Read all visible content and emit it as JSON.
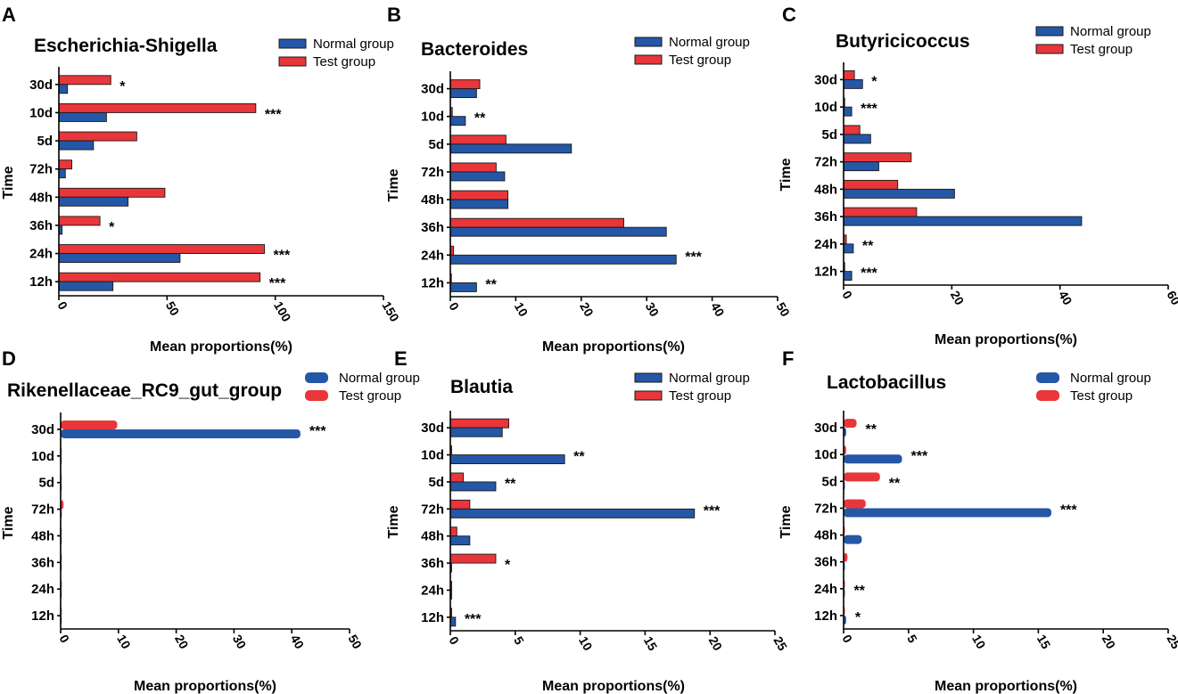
{
  "figure": {
    "colors": {
      "normal": "#2457a6",
      "test": "#e8363a",
      "stroke": "#1a1a1a"
    }
  },
  "chart_data": [
    {
      "panel": "A",
      "type": "bar",
      "orientation": "horizontal",
      "title": "Escherichia-Shigella",
      "xlabel": "Mean proportions(%)",
      "ylabel": "Time",
      "categories": [
        "30d",
        "10d",
        "5d",
        "72h",
        "48h",
        "36h",
        "24h",
        "12h"
      ],
      "series": [
        {
          "name": "Normal group",
          "values": [
            4,
            22,
            16,
            3,
            32,
            1.5,
            56,
            25
          ]
        },
        {
          "name": "Test group",
          "values": [
            24,
            91,
            36,
            6,
            49,
            19,
            95,
            93
          ]
        }
      ],
      "significance": [
        "*",
        "***",
        "",
        "",
        "",
        "*",
        "***",
        "***"
      ],
      "xlim": [
        0,
        150
      ],
      "xticks": [
        0,
        50,
        100,
        150
      ],
      "legend": [
        "Normal group",
        "Test group"
      ],
      "legend_position": "top-right"
    },
    {
      "panel": "B",
      "type": "bar",
      "orientation": "horizontal",
      "title": "Bacteroides",
      "xlabel": "Mean proportions(%)",
      "ylabel": "Time",
      "categories": [
        "30d",
        "10d",
        "5d",
        "72h",
        "48h",
        "36h",
        "24h",
        "12h"
      ],
      "series": [
        {
          "name": "Normal group",
          "values": [
            4,
            2.3,
            18.5,
            8.3,
            8.8,
            33,
            34.5,
            4
          ]
        },
        {
          "name": "Test group",
          "values": [
            4.5,
            0.3,
            8.5,
            7,
            8.8,
            26.5,
            0.5,
            0.1
          ]
        }
      ],
      "significance": [
        "",
        "**",
        "",
        "",
        "",
        "",
        "***",
        "**"
      ],
      "xlim": [
        0,
        50
      ],
      "xticks": [
        0,
        10,
        20,
        30,
        40,
        50
      ],
      "legend": [
        "Normal group",
        "Test group"
      ],
      "legend_position": "top-right"
    },
    {
      "panel": "C",
      "type": "bar",
      "orientation": "horizontal",
      "title": "Butyricicoccus",
      "xlabel": "Mean proportions(%)",
      "ylabel": "Time",
      "categories": [
        "30d",
        "10d",
        "5d",
        "72h",
        "48h",
        "36h",
        "24h",
        "12h"
      ],
      "series": [
        {
          "name": "Normal group",
          "values": [
            3.5,
            1.5,
            5,
            6.5,
            20.5,
            44,
            1.8,
            1.5
          ]
        },
        {
          "name": "Test group",
          "values": [
            2,
            0.2,
            3,
            12.5,
            10,
            13.5,
            0.5,
            0.2
          ]
        }
      ],
      "significance": [
        "*",
        "***",
        "",
        "",
        "",
        "",
        "**",
        "***"
      ],
      "xlim": [
        0,
        60
      ],
      "xticks": [
        0,
        20,
        40,
        60
      ],
      "legend": [
        "Normal group",
        "Test group"
      ],
      "legend_position": "top-right"
    },
    {
      "panel": "D",
      "type": "bar",
      "orientation": "horizontal",
      "title": "Rikenellaceae_RC9_gut_group",
      "xlabel": "Mean proportions(%)",
      "ylabel": "Time",
      "categories": [
        "30d",
        "10d",
        "5d",
        "72h",
        "48h",
        "36h",
        "24h",
        "12h"
      ],
      "series": [
        {
          "name": "Normal group",
          "values": [
            41.5,
            0.1,
            0.1,
            0.2,
            0.1,
            0.1,
            0.1,
            0.1
          ]
        },
        {
          "name": "Test group",
          "values": [
            9.8,
            0.1,
            0.1,
            0.5,
            0.1,
            0.2,
            0.2,
            0.2
          ]
        }
      ],
      "significance": [
        "***",
        "",
        "",
        "",
        "",
        "",
        "",
        ""
      ],
      "xlim": [
        0,
        50
      ],
      "xticks": [
        0,
        10,
        20,
        30,
        40,
        50
      ],
      "legend": [
        "Normal group",
        "Test group"
      ],
      "legend_position": "top-right"
    },
    {
      "panel": "E",
      "type": "bar",
      "orientation": "horizontal",
      "title": "Blautia",
      "xlabel": "Mean proportions(%)",
      "ylabel": "Time",
      "categories": [
        "30d",
        "10d",
        "5d",
        "72h",
        "48h",
        "36h",
        "24h",
        "12h"
      ],
      "series": [
        {
          "name": "Normal group",
          "values": [
            4,
            8.8,
            3.5,
            18.8,
            1.5,
            0.1,
            0.1,
            0.4
          ]
        },
        {
          "name": "Test group",
          "values": [
            4.5,
            0.1,
            1,
            1.5,
            0.5,
            3.5,
            0.1,
            0.1
          ]
        }
      ],
      "significance": [
        "",
        "**",
        "**",
        "***",
        "",
        "*",
        "",
        "***"
      ],
      "xlim": [
        0,
        25
      ],
      "xticks": [
        0,
        5,
        10,
        15,
        20,
        25
      ],
      "legend": [
        "Normal group",
        "Test group"
      ],
      "legend_position": "top-right"
    },
    {
      "panel": "F",
      "type": "bar",
      "orientation": "horizontal",
      "title": "Lactobacillus",
      "xlabel": "Mean proportions(%)",
      "ylabel": "Time",
      "categories": [
        "30d",
        "10d",
        "5d",
        "72h",
        "48h",
        "36h",
        "24h",
        "12h"
      ],
      "series": [
        {
          "name": "Normal group",
          "values": [
            0.2,
            4.5,
            0.1,
            16,
            1.4,
            0.1,
            0.1,
            0.2
          ]
        },
        {
          "name": "Test group",
          "values": [
            1,
            0.2,
            2.8,
            1.7,
            0.1,
            0.3,
            0.1,
            0.1
          ]
        }
      ],
      "significance": [
        "**",
        "***",
        "**",
        "***",
        "",
        "",
        "**",
        "*"
      ],
      "xlim": [
        0,
        25
      ],
      "xticks": [
        0,
        5,
        10,
        15,
        20,
        25
      ],
      "legend": [
        "Normal group",
        "Test group"
      ],
      "legend_position": "top-right"
    }
  ]
}
